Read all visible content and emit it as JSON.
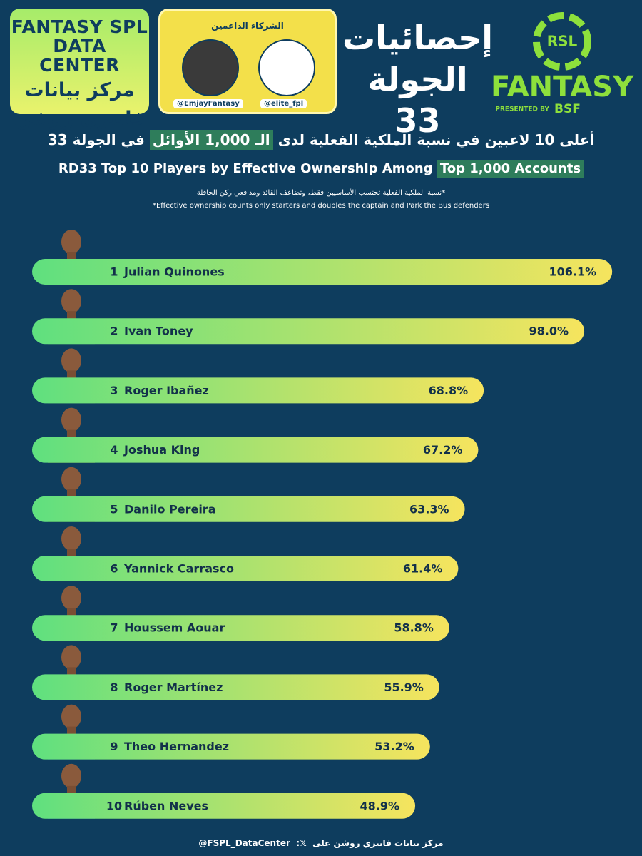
{
  "header": {
    "brand_en": [
      "FANTASY SPL",
      "DATA CENTER"
    ],
    "brand_ar": [
      "مركز بيانات",
      "فانتزي روشن"
    ],
    "partners_title": "الشركاء الداعمين",
    "partners": [
      "@EmjayFantasy",
      "@elite_fpl"
    ],
    "round_title": [
      "إحصائيات",
      "الجولة 33"
    ],
    "league_logo": "RSL",
    "league_word": "FANTASY",
    "presented_by": "PRESENTED BY",
    "sponsor": "BSF"
  },
  "chart_data": {
    "type": "bar",
    "orientation": "horizontal",
    "title_ar": {
      "before": "أعلى 10 لاعبين في نسبة الملكية الفعلية لدى",
      "highlight": "الـ 1,000 الأوائل",
      "after": "في الجولة 33"
    },
    "title_en": {
      "before": "RD33 Top 10 Players by Effective Ownership Among",
      "highlight": "Top 1,000 Accounts"
    },
    "notes": [
      "*نسبة الملكية الفعلية تحتسب الأساسيين فقط، وتضاعف القائد ومدافعي ركن الحافلة",
      "*Effective ownership counts only starters and doubles the captain and Park the Bus defenders"
    ],
    "ranks": [
      1,
      2,
      3,
      4,
      5,
      6,
      7,
      8,
      9,
      10
    ],
    "categories": [
      "Julian Quinones",
      "Ivan Toney",
      "Roger Ibañez",
      "Joshua King",
      "Danilo Pereira",
      "Yannick Carrasco",
      "Houssem Aouar",
      "Roger Martínez",
      "Theo Hernandez",
      "Rúben Neves"
    ],
    "values": [
      106.1,
      98.0,
      68.8,
      67.2,
      63.3,
      61.4,
      58.8,
      55.9,
      53.2,
      48.9
    ],
    "value_labels": [
      "106.1%",
      "98.0%",
      "68.8%",
      "67.2%",
      "63.3%",
      "61.4%",
      "58.8%",
      "55.9%",
      "53.2%",
      "48.9%"
    ],
    "xlim": [
      0,
      110
    ],
    "colors": [
      "#5fe07f",
      "#f6e45e"
    ]
  },
  "footer": {
    "handle": "@FSPL_DataCenter",
    "text": "مركز بيانات فانتزي روشن على"
  }
}
